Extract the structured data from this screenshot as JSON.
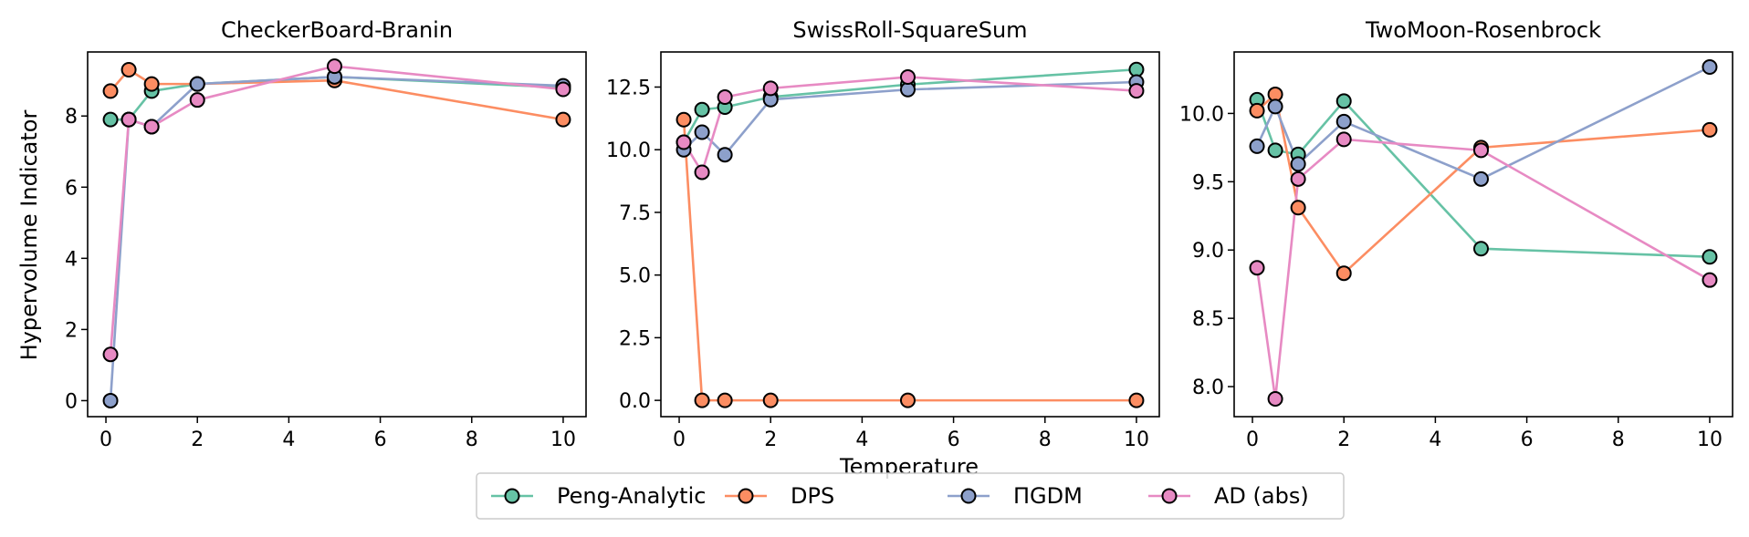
{
  "figure": {
    "ylabel": "Hypervolume Indicator",
    "xlabel": "Temperature"
  },
  "legend": {
    "placement": "bottom-center",
    "entries": [
      {
        "name": "Peng-Analytic",
        "color": "#66c2a5"
      },
      {
        "name": "DPS",
        "color": "#fc8d62"
      },
      {
        "name": "ΠGDM",
        "color": "#8da0cb"
      },
      {
        "name": "AD (abs)",
        "color": "#e78ac3"
      }
    ]
  },
  "chart_data": [
    {
      "type": "line",
      "title": "CheckerBoard-Branin",
      "x": [
        0.1,
        0.5,
        1,
        2,
        5,
        10
      ],
      "xlim": [
        -0.4,
        10.5
      ],
      "ylim": [
        -0.45,
        9.8
      ],
      "xticks": [
        0,
        2,
        4,
        6,
        8,
        10
      ],
      "yticks": [
        0,
        2,
        4,
        6,
        8
      ],
      "series": [
        {
          "name": "Peng-Analytic",
          "values": [
            7.9,
            7.9,
            8.7,
            8.9,
            9.1,
            8.8
          ]
        },
        {
          "name": "DPS",
          "values": [
            8.7,
            9.3,
            8.9,
            8.9,
            9.0,
            7.9
          ]
        },
        {
          "name": "ΠGDM",
          "values": [
            0.0,
            7.9,
            7.7,
            8.9,
            9.1,
            8.85
          ]
        },
        {
          "name": "AD (abs)",
          "values": [
            1.3,
            7.9,
            7.7,
            8.45,
            9.4,
            8.75
          ]
        }
      ]
    },
    {
      "type": "line",
      "title": "SwissRoll-SquareSum",
      "x": [
        0.1,
        0.5,
        1,
        2,
        5,
        10
      ],
      "xlim": [
        -0.4,
        10.5
      ],
      "ylim": [
        -0.65,
        13.9
      ],
      "xticks": [
        0,
        2,
        4,
        6,
        8,
        10
      ],
      "yticks": [
        0.0,
        2.5,
        5.0,
        7.5,
        10.0,
        12.5
      ],
      "series": [
        {
          "name": "Peng-Analytic",
          "values": [
            10.3,
            11.6,
            11.7,
            12.1,
            12.6,
            13.2
          ]
        },
        {
          "name": "DPS",
          "values": [
            11.2,
            0.0,
            0.0,
            0.0,
            0.0,
            0.0
          ]
        },
        {
          "name": "ΠGDM",
          "values": [
            10.0,
            10.7,
            9.8,
            12.0,
            12.4,
            12.7
          ]
        },
        {
          "name": "AD (abs)",
          "values": [
            10.3,
            9.1,
            12.1,
            12.45,
            12.9,
            12.35
          ]
        }
      ]
    },
    {
      "type": "line",
      "title": "TwoMoon-Rosenbrock",
      "x": [
        0.1,
        0.5,
        1,
        2,
        5,
        10
      ],
      "xlim": [
        -0.4,
        10.5
      ],
      "ylim": [
        7.78,
        10.45
      ],
      "xticks": [
        0,
        2,
        4,
        6,
        8,
        10
      ],
      "yticks": [
        8.0,
        8.5,
        9.0,
        9.5,
        10.0
      ],
      "series": [
        {
          "name": "Peng-Analytic",
          "values": [
            10.1,
            9.73,
            9.7,
            10.09,
            9.01,
            8.95
          ]
        },
        {
          "name": "DPS",
          "values": [
            10.02,
            10.14,
            9.31,
            8.83,
            9.75,
            9.88
          ]
        },
        {
          "name": "ΠGDM",
          "values": [
            9.76,
            10.05,
            9.63,
            9.94,
            9.52,
            10.34
          ]
        },
        {
          "name": "AD (abs)",
          "values": [
            8.87,
            7.91,
            9.52,
            9.81,
            9.73,
            8.78
          ]
        }
      ]
    }
  ]
}
